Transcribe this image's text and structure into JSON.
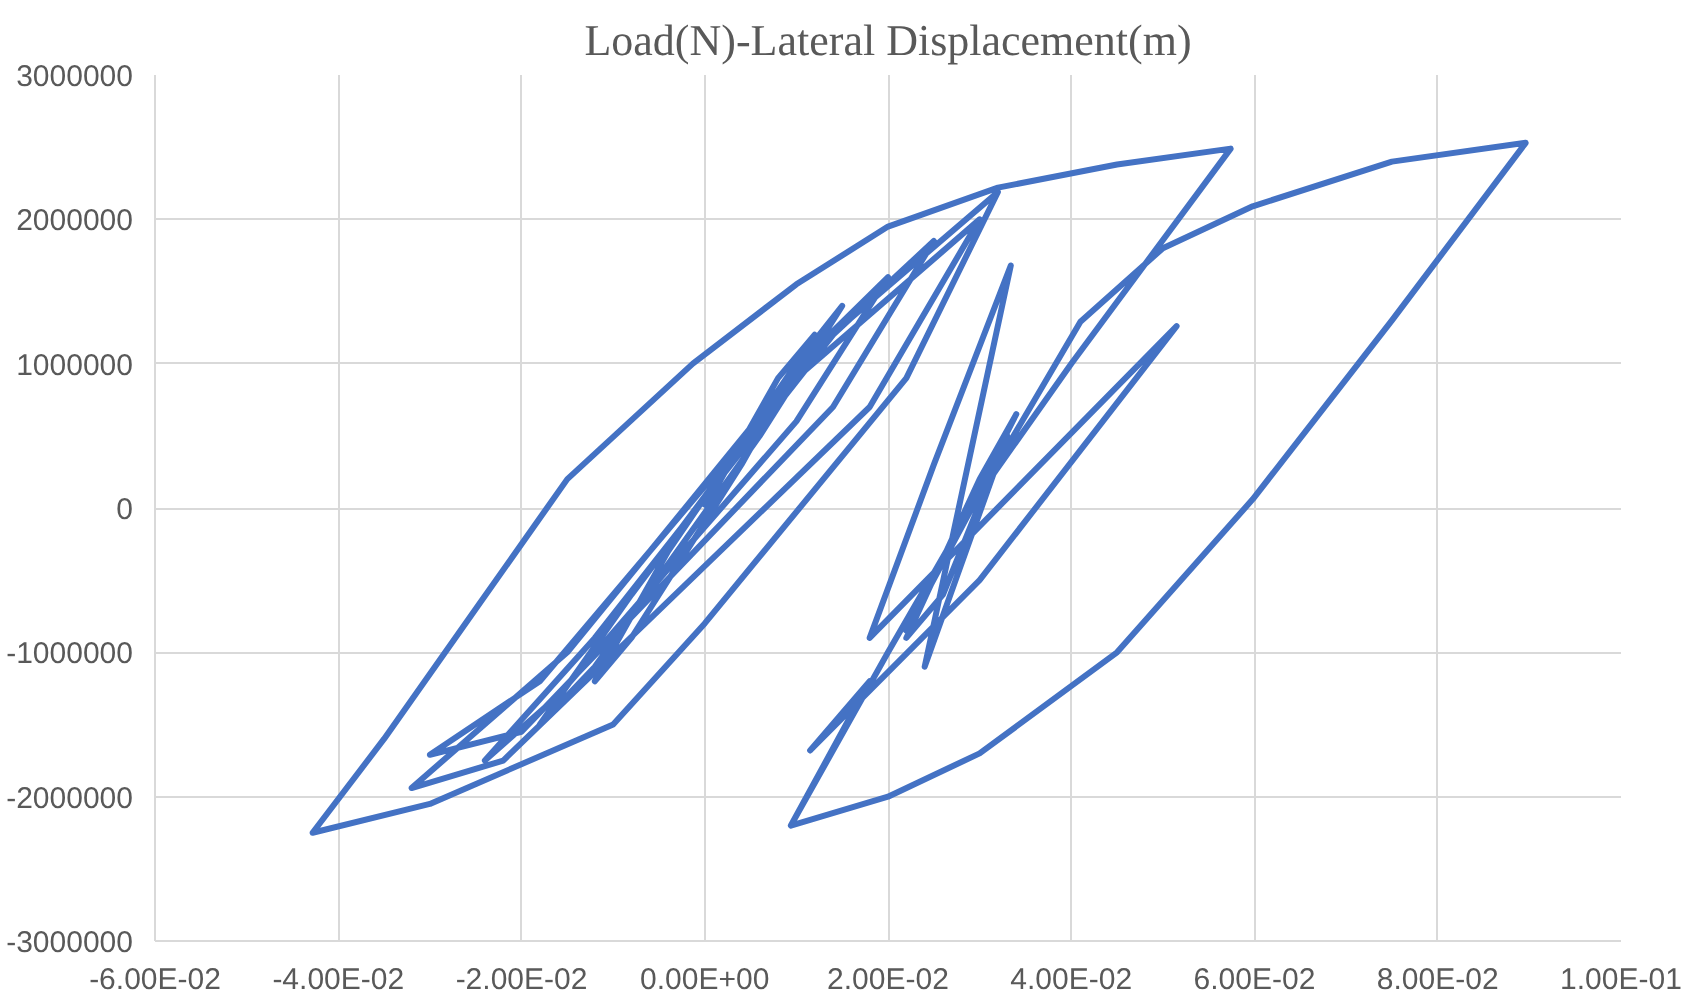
{
  "chart_data": {
    "type": "line",
    "title": "Load(N)-Lateral Displacement(m)",
    "x": [
      0,
      0.008,
      0.012,
      0.004,
      -0.008,
      -0.012,
      -0.004,
      0.01,
      0.015,
      0.006,
      -0.012,
      -0.018,
      -0.008,
      0.012,
      0.02,
      0.01,
      -0.016,
      -0.024,
      -0.012,
      0.014,
      0.025,
      0.014,
      -0.02,
      -0.03,
      -0.018,
      0.01,
      0.03,
      0.018,
      -0.022,
      -0.032,
      -0.015,
      0.012,
      0.032,
      0.022,
      0.0,
      -0.01,
      -0.03,
      -0.0428,
      -0.035,
      -0.025,
      -0.015,
      -0.0013,
      0.01,
      0.02,
      0.032,
      0.045,
      0.0574,
      0.04,
      0.03,
      0.022,
      0.034,
      0.03,
      0.022,
      0.026,
      0.033,
      0.024,
      0.0334,
      0.025,
      0.018,
      0.0515,
      0.03,
      0.0115,
      0.018,
      0.0094,
      0.02,
      0.03,
      0.041,
      0.05,
      0.0598,
      0.075,
      0.0896,
      0.075,
      0.0598,
      0.045,
      0.03,
      0.02,
      0.0094
    ],
    "values": [
      0,
      900000,
      1200000,
      300000,
      -900000,
      -1200000,
      -300000,
      1000000,
      1400000,
      500000,
      -1100000,
      -1500000,
      -600000,
      1100000,
      1600000,
      600000,
      -1300000,
      -1750000,
      -900000,
      1200000,
      1850000,
      700000,
      -1550000,
      -1710000,
      -1200000,
      900000,
      2000000,
      700000,
      -1750000,
      -1940000,
      -1000000,
      1100000,
      2190000,
      900000,
      -800000,
      -1500000,
      -2050000,
      -2250000,
      -1600000,
      -700000,
      200000,
      1000000,
      1550000,
      1950000,
      2220000,
      2380000,
      2490000,
      1000000,
      100000,
      -850000,
      650000,
      200000,
      -900000,
      -600000,
      500000,
      -1100000,
      1680000,
      300000,
      -900000,
      1260000,
      -500000,
      -1680000,
      -1200000,
      -2200000,
      -1000000,
      100000,
      1290000,
      1800000,
      2090000,
      2400000,
      2530000,
      1300000,
      60000,
      -1000000,
      -1700000,
      -2000000,
      -2200000
    ],
    "color": "#4472c4",
    "line_style": "solid",
    "marker": "none",
    "grid": true,
    "xlim": [
      -0.06,
      0.1
    ],
    "xticks": [
      {
        "value": -0.06,
        "label": "-6.00E-02"
      },
      {
        "value": -0.04,
        "label": "-4.00E-02"
      },
      {
        "value": -0.02,
        "label": "-2.00E-02"
      },
      {
        "value": 0,
        "label": "0.00E+00"
      },
      {
        "value": 0.02,
        "label": "2.00E-02"
      },
      {
        "value": 0.04,
        "label": "4.00E-02"
      },
      {
        "value": 0.06,
        "label": "6.00E-02"
      },
      {
        "value": 0.08,
        "label": "8.00E-02"
      },
      {
        "value": 0.1,
        "label": "1.00E-01"
      }
    ],
    "ylim": [
      -3000000,
      3000000
    ],
    "yticks": [
      -3000000,
      -2000000,
      -1000000,
      0,
      1000000,
      2000000,
      3000000
    ]
  }
}
